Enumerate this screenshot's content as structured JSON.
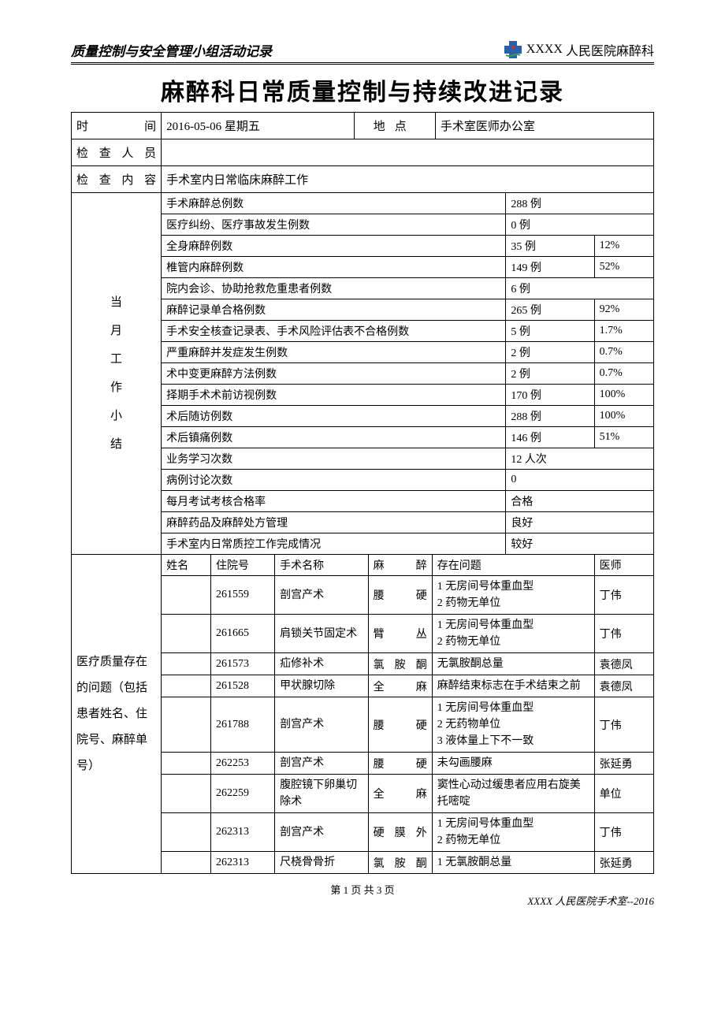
{
  "header": {
    "left": "质量控制与安全管理小组活动记录",
    "right_prefix": "XXXX",
    "right_suffix": "人民医院麻醉科"
  },
  "title": "麻醉科日常质量控制与持续改进记录",
  "info": {
    "time_label": "时　　间",
    "time_value": "2016-05-06 星期五",
    "location_label": "地点",
    "location_value": "手术室医师办公室",
    "inspector_label": "检查人员",
    "inspector_value": "",
    "content_label": "检查内容",
    "content_value": "手术室内日常临床麻醉工作"
  },
  "monthly_label": "当月工作小结",
  "monthly_label_chars": [
    "当",
    "月",
    "工",
    "作",
    "小",
    "结"
  ],
  "stats": [
    {
      "label": "手术麻醉总例数",
      "value": "288 例",
      "percent": ""
    },
    {
      "label": "医疗纠纷、医疗事故发生例数",
      "value": "0 例",
      "percent": ""
    },
    {
      "label": "全身麻醉例数",
      "value": "35 例",
      "percent": "12%"
    },
    {
      "label": "椎管内麻醉例数",
      "value": "149 例",
      "percent": "52%"
    },
    {
      "label": "院内会诊、协助抢救危重患者例数",
      "value": "6 例",
      "percent": ""
    },
    {
      "label": "麻醉记录单合格例数",
      "value": "265 例",
      "percent": "92%"
    },
    {
      "label": "手术安全核查记录表、手术风险评估表不合格例数",
      "value": "5 例",
      "percent": "1.7%"
    },
    {
      "label": "严重麻醉并发症发生例数",
      "value": "2 例",
      "percent": "0.7%"
    },
    {
      "label": "术中变更麻醉方法例数",
      "value": "2 例",
      "percent": "0.7%"
    },
    {
      "label": "择期手术术前访视例数",
      "value": "170 例",
      "percent": "100%"
    },
    {
      "label": "术后随访例数",
      "value": "288 例",
      "percent": "100%"
    },
    {
      "label": "术后镇痛例数",
      "value": "146 例",
      "percent": "51%"
    },
    {
      "label": "业务学习次数",
      "value": "12 人次",
      "percent": ""
    },
    {
      "label": "病例讨论次数",
      "value": "0",
      "percent": ""
    },
    {
      "label": "每月考试考核合格率",
      "value": "合格",
      "percent": ""
    },
    {
      "label": "麻醉药品及麻醉处方管理",
      "value": "良好",
      "percent": ""
    },
    {
      "label": "手术室内日常质控工作完成情况",
      "value": "较好",
      "percent": ""
    }
  ],
  "issues_label": "医疗质量存在的问题（包括患者姓名、住院号、麻醉单号）",
  "issues_header": {
    "name": "姓名",
    "hospital_no": "住院号",
    "surgery": "手术名称",
    "anesthesia": "麻　醉",
    "problem": "存在问题",
    "doctor": "医师"
  },
  "issues": [
    {
      "name": "",
      "hospital_no": "261559",
      "surgery": "剖宫产术",
      "anesthesia": "腰　硬",
      "problem": "1 无房间号体重血型\n2 药物无单位",
      "doctor": "丁伟"
    },
    {
      "name": "",
      "hospital_no": "261665",
      "surgery": "肩锁关节固定术",
      "anesthesia": "臂　丛",
      "problem": "1 无房间号体重血型\n2 药物无单位",
      "doctor": "丁伟"
    },
    {
      "name": "",
      "hospital_no": "261573",
      "surgery": "疝修补术",
      "anesthesia": "氯胺酮",
      "problem": "无氯胺酮总量",
      "doctor": "袁德凤"
    },
    {
      "name": "",
      "hospital_no": "261528",
      "surgery": "甲状腺切除",
      "anesthesia": "全　麻",
      "problem": "麻醉结束标志在手术结束之前",
      "doctor": "袁德凤"
    },
    {
      "name": "",
      "hospital_no": "261788",
      "surgery": "剖宫产术",
      "anesthesia": "腰　硬",
      "problem": "1 无房间号体重血型\n2 无药物单位\n3 液体量上下不一致",
      "doctor": "丁伟"
    },
    {
      "name": "",
      "hospital_no": "262253",
      "surgery": "剖宫产术",
      "anesthesia": "腰　硬",
      "problem": "未勾画腰麻",
      "doctor": "张延勇"
    },
    {
      "name": "",
      "hospital_no": "262259",
      "surgery": "腹腔镜下卵巢切除术",
      "anesthesia": "全　麻",
      "problem": "窦性心动过缓患者应用右旋美托嘧啶",
      "doctor": "单位"
    },
    {
      "name": "",
      "hospital_no": "262313",
      "surgery": "剖宫产术",
      "anesthesia": "硬膜外",
      "problem": "1 无房间号体重血型\n2 药物无单位",
      "doctor": "丁伟"
    },
    {
      "name": "",
      "hospital_no": "262313",
      "surgery": "尺桡骨骨折",
      "anesthesia": "氯胺酮",
      "problem": "1 无氯胺酮总量",
      "doctor": "张延勇"
    }
  ],
  "footer": {
    "center": "第 1 页 共 3 页",
    "right": "XXXX 人民医院手术室--2016"
  },
  "colors": {
    "text": "#000000",
    "bg": "#ffffff",
    "border": "#000000",
    "logo_blue": "#2b5fa8",
    "logo_red": "#c83232",
    "logo_green": "#3a9b4a"
  }
}
